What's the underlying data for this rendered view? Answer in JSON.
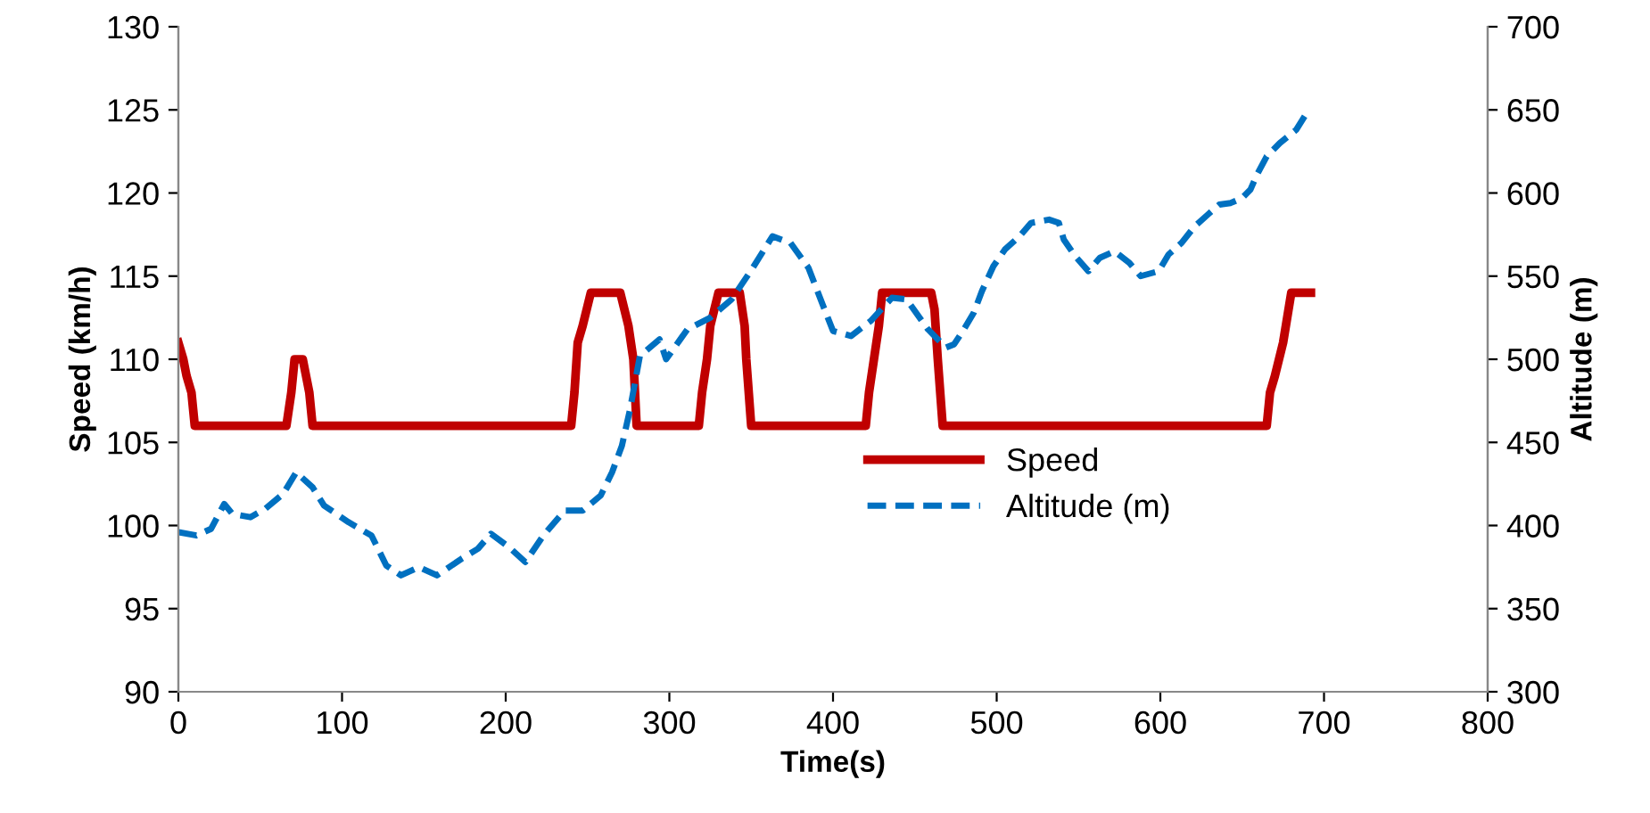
{
  "chart_data": {
    "type": "line",
    "xlabel": "Time(s)",
    "ylabel": "Speed (km/h)",
    "y2label": "Altitude (m)",
    "xlim": [
      0,
      800
    ],
    "xticks": [
      0,
      100,
      200,
      300,
      400,
      500,
      600,
      700,
      800
    ],
    "ylim": [
      90,
      130
    ],
    "yticks": [
      90,
      95,
      100,
      105,
      110,
      115,
      120,
      125,
      130
    ],
    "y2lim": [
      300,
      700
    ],
    "y2ticks": [
      300,
      350,
      400,
      450,
      500,
      550,
      600,
      650,
      700
    ],
    "grid": false,
    "legend": "center right",
    "marker": "none",
    "series": [
      {
        "name": "Speed",
        "color": "#c00000",
        "line_style": "solid",
        "x": [
          0,
          3,
          5,
          8,
          9,
          10,
          66,
          69,
          71,
          76,
          78,
          80,
          82,
          240,
          242,
          244,
          247,
          252,
          270,
          275,
          278,
          280,
          318,
          320,
          323,
          325,
          330,
          343,
          346,
          347,
          350,
          420,
          422,
          425,
          428,
          430,
          460,
          462,
          464,
          467,
          665,
          667,
          670,
          675,
          680,
          692
        ],
        "values": [
          111,
          110,
          109,
          108,
          107,
          106,
          106,
          108,
          110,
          110,
          109,
          108,
          106,
          106,
          108,
          111,
          112,
          114,
          114,
          112,
          110,
          106,
          106,
          108,
          110,
          112,
          114,
          114,
          112,
          110,
          106,
          106,
          108,
          110,
          112,
          114,
          114,
          113,
          110,
          106,
          106,
          108,
          109,
          111,
          114,
          114
        ]
      },
      {
        "name": "Altitude (m)",
        "color": "#0070c0",
        "line_style": "dashed",
        "axis": "y2",
        "x": [
          0,
          11,
          20,
          28,
          33,
          44,
          53,
          64,
          72,
          82,
          89,
          104,
          118,
          127,
          136,
          147,
          158,
          173,
          183,
          191,
          202,
          212,
          223,
          236,
          247,
          258,
          265,
          271,
          276,
          282,
          294,
          298,
          311,
          325,
          338,
          351,
          363,
          374,
          385,
          394,
          400,
          411,
          423,
          436,
          445,
          458,
          469,
          474,
          480,
          486,
          491,
          498,
          505,
          514,
          521,
          532,
          538,
          541,
          548,
          556,
          563,
          572,
          581,
          588,
          599,
          605,
          613,
          621,
          629,
          636,
          643,
          650,
          655,
          659,
          665,
          673,
          683,
          690
        ],
        "values": [
          396,
          394,
          398,
          413,
          407,
          405,
          410,
          419,
          432,
          423,
          412,
          402,
          394,
          376,
          370,
          375,
          370,
          380,
          386,
          395,
          387,
          378,
          394,
          409,
          409,
          418,
          432,
          448,
          470,
          502,
          512,
          500,
          518,
          525,
          536,
          555,
          574,
          570,
          555,
          532,
          517,
          514,
          523,
          537,
          536,
          518,
          507,
          509,
          518,
          528,
          541,
          556,
          566,
          574,
          582,
          584,
          582,
          572,
          562,
          553,
          561,
          565,
          558,
          550,
          553,
          563,
          570,
          580,
          587,
          593,
          594,
          597,
          602,
          611,
          622,
          630,
          638,
          649
        ]
      }
    ]
  }
}
